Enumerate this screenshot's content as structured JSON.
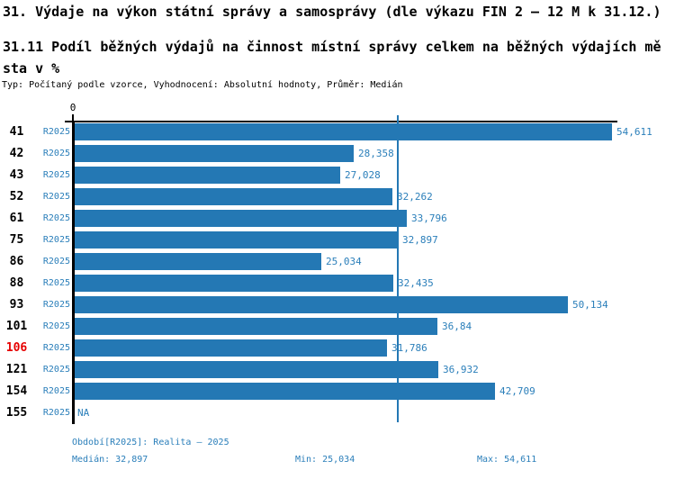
{
  "title": "31. Výdaje na výkon státní správy a samosprávy (dle výkazu FIN 2 – 12 M k 31.12.)",
  "subtitle": "31.11 Podíl běžných výdajů na činnost místní správy celkem na běžných výdajích města v %",
  "meta": "Typ: Počítaný podle vzorce, Vyhodnocení: Absolutní hodnoty, Průměr: Medián",
  "colors": {
    "bar": "#2478b4",
    "text_blue": "#2b7fba",
    "highlight_red": "#e60000",
    "axis_black": "#000000"
  },
  "chart_data": {
    "type": "bar",
    "orientation": "horizontal",
    "title": "31.11 Podíl běžných výdajů na činnost místní správy celkem na běžných výdajích města v %",
    "series_label": "R2025",
    "axis_origin_label": "0",
    "xlim": [
      0,
      55
    ],
    "grid": false,
    "median_line_value": 32.897,
    "rows": [
      {
        "id": "41",
        "period": "R2025",
        "value": 54.611,
        "label": "54,611",
        "highlight": false
      },
      {
        "id": "42",
        "period": "R2025",
        "value": 28.358,
        "label": "28,358",
        "highlight": false
      },
      {
        "id": "43",
        "period": "R2025",
        "value": 27.028,
        "label": "27,028",
        "highlight": false
      },
      {
        "id": "52",
        "period": "R2025",
        "value": 32.262,
        "label": "32,262",
        "highlight": false
      },
      {
        "id": "61",
        "period": "R2025",
        "value": 33.796,
        "label": "33,796",
        "highlight": false
      },
      {
        "id": "75",
        "period": "R2025",
        "value": 32.897,
        "label": "32,897",
        "highlight": false
      },
      {
        "id": "86",
        "period": "R2025",
        "value": 25.034,
        "label": "25,034",
        "highlight": false
      },
      {
        "id": "88",
        "period": "R2025",
        "value": 32.435,
        "label": "32,435",
        "highlight": false
      },
      {
        "id": "93",
        "period": "R2025",
        "value": 50.134,
        "label": "50,134",
        "highlight": false
      },
      {
        "id": "101",
        "period": "R2025",
        "value": 36.84,
        "label": "36,84",
        "highlight": false
      },
      {
        "id": "106",
        "period": "R2025",
        "value": 31.786,
        "label": "31,786",
        "highlight": true
      },
      {
        "id": "121",
        "period": "R2025",
        "value": 36.932,
        "label": "36,932",
        "highlight": false
      },
      {
        "id": "154",
        "period": "R2025",
        "value": 42.709,
        "label": "42,709",
        "highlight": false
      },
      {
        "id": "155",
        "period": "R2025",
        "value": null,
        "label": "NA",
        "highlight": false
      }
    ]
  },
  "footer": {
    "period_info": "Období[R2025]: Realita – 2025",
    "median": "Medián: 32,897",
    "min": "Min: 25,034",
    "max": "Max: 54,611"
  }
}
